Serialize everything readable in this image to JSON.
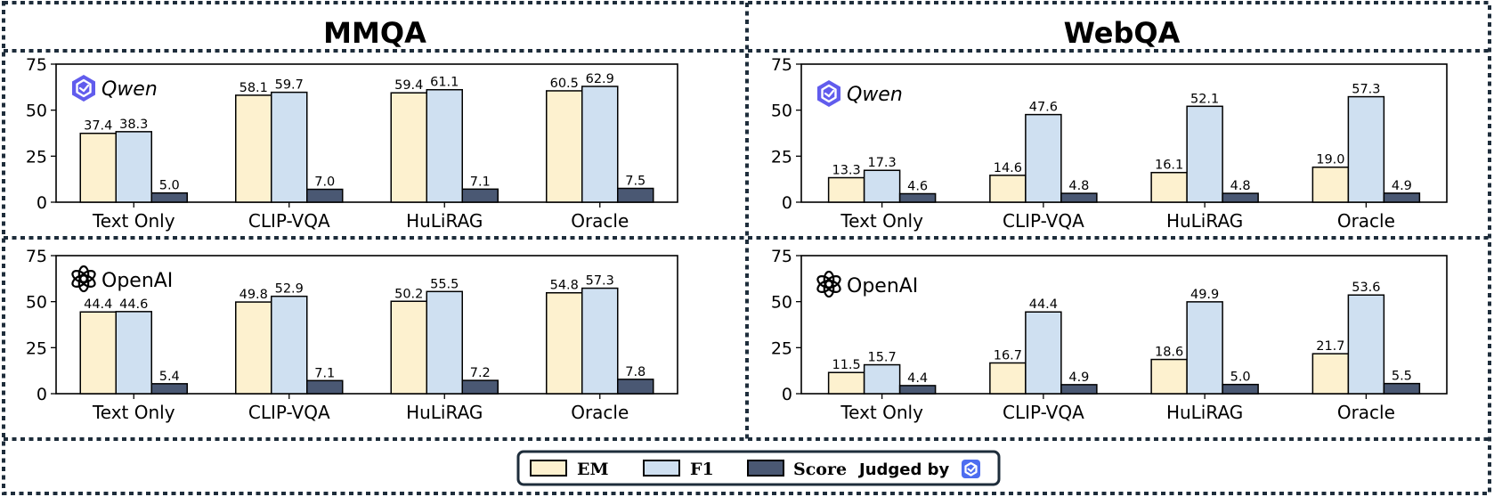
{
  "columns": [
    "MMQA",
    "WebQA"
  ],
  "colors": {
    "EM": "#fdf1cf",
    "F1": "#cfe0f1",
    "Score": "#4a5873",
    "frame": "#1e2d3b",
    "qwen_logo": "#615ced",
    "judge_icon": "#4d6df0"
  },
  "legend": {
    "items": [
      "EM",
      "F1",
      "Score"
    ],
    "judged_label": "Judged by",
    "judge_icon": "qwen-icon"
  },
  "chart_data": [
    {
      "type": "bar",
      "title": "MMQA",
      "model": "Qwen",
      "logo_icon": "qwen-logo",
      "categories": [
        "Text Only",
        "CLIP-VQA",
        "HuLiRAG",
        "Oracle"
      ],
      "ylim": [
        0,
        75
      ],
      "yticks": [
        0,
        25,
        50,
        75
      ],
      "series": [
        {
          "name": "EM",
          "values": [
            37.4,
            58.1,
            59.4,
            60.5
          ]
        },
        {
          "name": "F1",
          "values": [
            38.3,
            59.7,
            61.1,
            62.9
          ]
        },
        {
          "name": "Score",
          "values": [
            5.0,
            7.0,
            7.1,
            7.5
          ]
        }
      ]
    },
    {
      "type": "bar",
      "title": "WebQA",
      "model": "Qwen",
      "logo_icon": "qwen-logo",
      "categories": [
        "Text Only",
        "CLIP-VQA",
        "HuLiRAG",
        "Oracle"
      ],
      "ylim": [
        0,
        75
      ],
      "yticks": [
        0,
        25,
        50,
        75
      ],
      "series": [
        {
          "name": "EM",
          "values": [
            13.3,
            14.6,
            16.1,
            19.0
          ]
        },
        {
          "name": "F1",
          "values": [
            17.3,
            47.6,
            52.1,
            57.3
          ]
        },
        {
          "name": "Score",
          "values": [
            4.6,
            4.8,
            4.8,
            4.9
          ]
        }
      ]
    },
    {
      "type": "bar",
      "title": "MMQA",
      "model": "OpenAI",
      "logo_icon": "openai-logo",
      "categories": [
        "Text Only",
        "CLIP-VQA",
        "HuLiRAG",
        "Oracle"
      ],
      "ylim": [
        0,
        75
      ],
      "yticks": [
        0,
        25,
        50,
        75
      ],
      "series": [
        {
          "name": "EM",
          "values": [
            44.4,
            49.8,
            50.2,
            54.8
          ]
        },
        {
          "name": "F1",
          "values": [
            44.6,
            52.9,
            55.5,
            57.3
          ]
        },
        {
          "name": "Score",
          "values": [
            5.4,
            7.1,
            7.2,
            7.8
          ]
        }
      ]
    },
    {
      "type": "bar",
      "title": "WebQA",
      "model": "OpenAI",
      "logo_icon": "openai-logo",
      "categories": [
        "Text Only",
        "CLIP-VQA",
        "HuLiRAG",
        "Oracle"
      ],
      "ylim": [
        0,
        75
      ],
      "yticks": [
        0,
        25,
        50,
        75
      ],
      "series": [
        {
          "name": "EM",
          "values": [
            11.5,
            16.7,
            18.6,
            21.7
          ]
        },
        {
          "name": "F1",
          "values": [
            15.7,
            44.4,
            49.9,
            53.6
          ]
        },
        {
          "name": "Score",
          "values": [
            4.4,
            4.9,
            5.0,
            5.5
          ]
        }
      ]
    }
  ]
}
